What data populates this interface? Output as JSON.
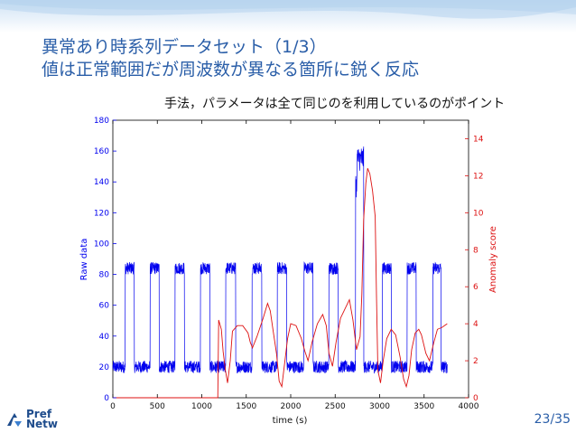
{
  "slide": {
    "title_line1": "異常あり時系列データセット（1/3）",
    "title_line2": "値は正常範囲だが周波数が異なる箇所に鋭く反応",
    "subtitle": "手法，パラメータは全て同じのを利用しているのがポイント",
    "page_number": "23/35",
    "logo_text_1": "Pref",
    "logo_text_2": "Netw"
  },
  "colors": {
    "title": "#2a5ea8",
    "raw_series": "#0000ee",
    "score_series": "#dd1111"
  },
  "chart_data": {
    "type": "line",
    "title": "",
    "xlabel": "time (s)",
    "ylabel_left": "Raw data",
    "ylabel_right": "Anomaly score",
    "xlim": [
      0,
      4000
    ],
    "ylim_left": [
      0,
      180
    ],
    "ylim_right": [
      0,
      15
    ],
    "x_ticks": [
      "0",
      "500",
      "1000",
      "1500",
      "2000",
      "2500",
      "3000",
      "3500",
      "4000"
    ],
    "y_left_ticks": [
      "0",
      "20",
      "40",
      "60",
      "80",
      "100",
      "120",
      "140",
      "160",
      "180"
    ],
    "y_right_ticks": [
      "0",
      "2",
      "4",
      "6",
      "8",
      "10",
      "12",
      "14"
    ],
    "grid": false,
    "series": [
      {
        "name": "Raw data",
        "axis": "left",
        "low_level": 20,
        "high_level": 84,
        "noise": 4,
        "normal_pulses": [
          [
            140,
            240
          ],
          [
            420,
            520
          ],
          [
            700,
            805
          ],
          [
            985,
            1090
          ],
          [
            1270,
            1380
          ],
          [
            1565,
            1675
          ],
          [
            1850,
            1955
          ],
          [
            2150,
            2250
          ],
          [
            2430,
            2535
          ],
          [
            3030,
            3130
          ],
          [
            3310,
            3410
          ],
          [
            3600,
            3690
          ]
        ],
        "anomaly_segment": {
          "x_start": 2730,
          "x_end": 2820,
          "level": 155,
          "step_level": 138,
          "noise": 8
        }
      },
      {
        "name": "Anomaly score",
        "axis": "right",
        "points": [
          [
            0,
            0
          ],
          [
            1180,
            0
          ],
          [
            1190,
            4.2
          ],
          [
            1220,
            3.7
          ],
          [
            1240,
            2.5
          ],
          [
            1265,
            1.5
          ],
          [
            1290,
            0.8
          ],
          [
            1320,
            2.0
          ],
          [
            1345,
            3.6
          ],
          [
            1400,
            3.9
          ],
          [
            1460,
            3.9
          ],
          [
            1520,
            3.5
          ],
          [
            1545,
            3.0
          ],
          [
            1570,
            2.7
          ],
          [
            1620,
            3.3
          ],
          [
            1690,
            4.3
          ],
          [
            1740,
            5.1
          ],
          [
            1770,
            4.7
          ],
          [
            1800,
            3.7
          ],
          [
            1840,
            2.4
          ],
          [
            1870,
            0.9
          ],
          [
            1900,
            0.6
          ],
          [
            1930,
            1.8
          ],
          [
            1965,
            3.2
          ],
          [
            2000,
            4.0
          ],
          [
            2060,
            3.9
          ],
          [
            2120,
            3.2
          ],
          [
            2160,
            2.5
          ],
          [
            2195,
            2.0
          ],
          [
            2240,
            3.0
          ],
          [
            2300,
            4.0
          ],
          [
            2360,
            4.5
          ],
          [
            2400,
            3.9
          ],
          [
            2430,
            2.4
          ],
          [
            2470,
            1.7
          ],
          [
            2510,
            3.0
          ],
          [
            2560,
            4.3
          ],
          [
            2620,
            4.9
          ],
          [
            2660,
            5.3
          ],
          [
            2700,
            4.2
          ],
          [
            2740,
            2.6
          ],
          [
            2780,
            3.3
          ],
          [
            2800,
            5.6
          ],
          [
            2820,
            9.6
          ],
          [
            2845,
            11.6
          ],
          [
            2865,
            12.4
          ],
          [
            2890,
            12.1
          ],
          [
            2920,
            11.2
          ],
          [
            2950,
            9.8
          ],
          [
            2965,
            5.4
          ],
          [
            2980,
            1.5
          ],
          [
            3010,
            0.8
          ],
          [
            3040,
            2.0
          ],
          [
            3080,
            3.2
          ],
          [
            3130,
            3.7
          ],
          [
            3180,
            3.4
          ],
          [
            3230,
            2.2
          ],
          [
            3270,
            1.0
          ],
          [
            3300,
            0.6
          ],
          [
            3330,
            1.2
          ],
          [
            3360,
            2.6
          ],
          [
            3400,
            3.5
          ],
          [
            3440,
            3.7
          ],
          [
            3470,
            3.4
          ],
          [
            3520,
            2.4
          ],
          [
            3560,
            2.0
          ],
          [
            3610,
            3.0
          ],
          [
            3650,
            3.7
          ],
          [
            3700,
            3.8
          ],
          [
            3760,
            4.0
          ]
        ]
      }
    ]
  }
}
